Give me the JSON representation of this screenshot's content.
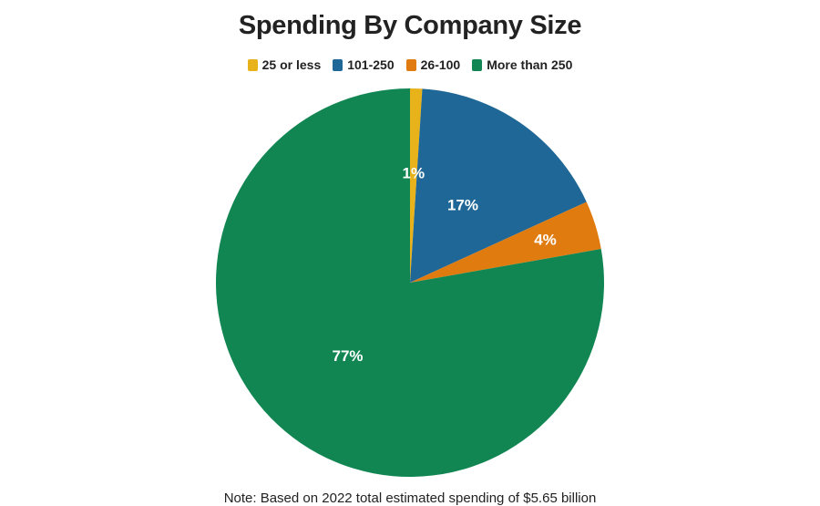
{
  "chart_data": {
    "type": "pie",
    "title": "Spending By Company Size",
    "categories": [
      "25 or less",
      "101-250",
      "26-100",
      "More than 250"
    ],
    "values": [
      1,
      17,
      4,
      77
    ],
    "labels": [
      "1%",
      "17%",
      "4%",
      "77%"
    ],
    "colors": [
      "#e8b21a",
      "#1f6796",
      "#e07b10",
      "#118652"
    ],
    "legend_position": "top",
    "note": "Note: Based on 2022 total estimated spending of $5.65 billion"
  }
}
